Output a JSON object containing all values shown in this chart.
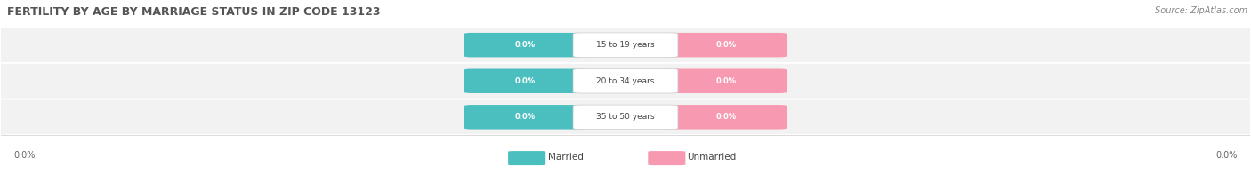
{
  "title": "FERTILITY BY AGE BY MARRIAGE STATUS IN ZIP CODE 13123",
  "source": "Source: ZipAtlas.com",
  "age_groups": [
    "15 to 19 years",
    "20 to 34 years",
    "35 to 50 years"
  ],
  "married_values": [
    0.0,
    0.0,
    0.0
  ],
  "unmarried_values": [
    0.0,
    0.0,
    0.0
  ],
  "married_color": "#4bbfbf",
  "unmarried_color": "#f799b0",
  "title_fontsize": 9,
  "source_fontsize": 7,
  "legend_married": "Married",
  "legend_unmarried": "Unmarried",
  "background_color": "#ffffff"
}
